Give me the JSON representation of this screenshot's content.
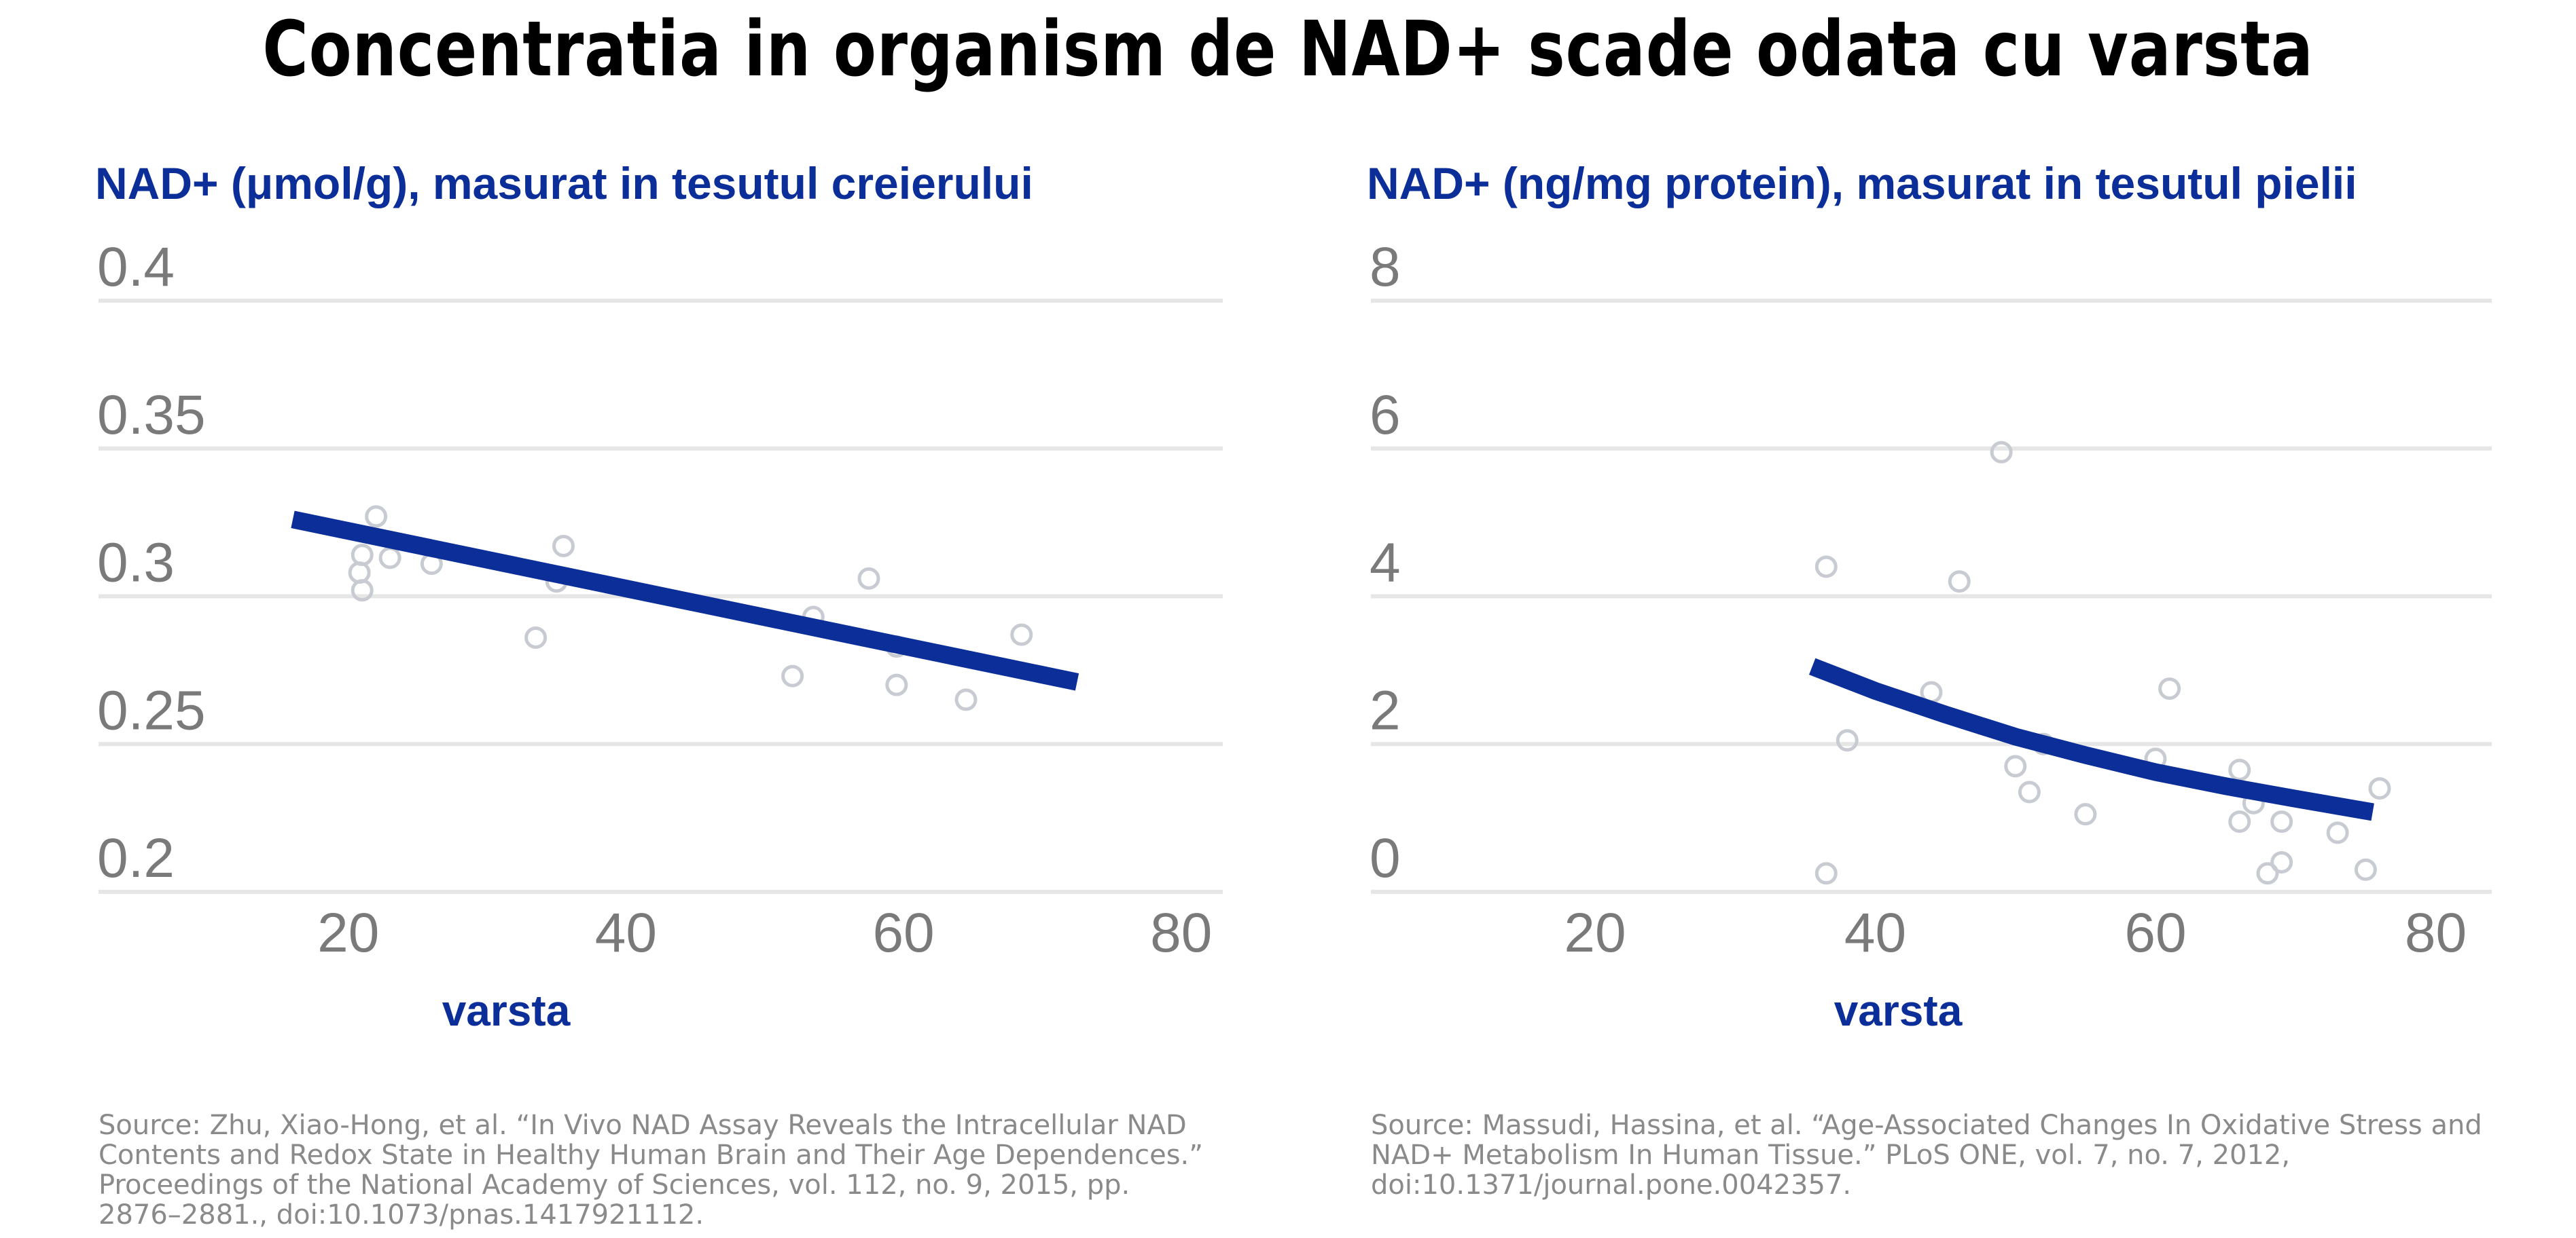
{
  "title": "Concentratia in organism de NAD+ scade odata cu varsta",
  "left_panel": {
    "title": "NAD+ (μmol/g),  masurat in tesutul creierului",
    "xlabel": "varsta",
    "source": "Source: Zhu, Xiao-Hong, et al. “In Vivo NAD Assay Reveals the Intracellular NAD Contents and Redox State in Healthy Human Brain and Their Age Dependences.” Proceedings of the National Academy of Sciences, vol. 112, no. 9, 2015, pp. 2876–2881., doi:10.1073/pnas.1417921112."
  },
  "right_panel": {
    "title": "NAD+ (ng/mg protein), masurat in tesutul pielii",
    "xlabel": "varsta",
    "source": "Source: Massudi, Hassina, et al. “Age-Associated Changes In Oxidative Stress and NAD+ Metabolism In Human Tissue.” PLoS ONE, vol. 7, no. 7, 2012, doi:10.1371/journal.pone.0042357."
  },
  "chart_data": [
    {
      "type": "scatter",
      "title": "NAD+ (μmol/g),  masurat in tesutul creierului",
      "xlabel": "varsta",
      "ylabel": "",
      "xlim": [
        2,
        83
      ],
      "ylim": [
        0.2,
        0.4
      ],
      "x_ticks": [
        "20",
        "40",
        "60",
        "80"
      ],
      "y_ticks": [
        "0.2",
        "0.25",
        "0.3",
        "0.35",
        "0.4"
      ],
      "grid": true,
      "colors": {
        "points": "#c8ccd2",
        "trend": "#0b2e99",
        "grid": "#e6e6e6",
        "ticks": "#7a7a7a"
      },
      "points": [
        [
          22,
          0.327
        ],
        [
          21,
          0.314
        ],
        [
          20.8,
          0.308
        ],
        [
          21,
          0.302
        ],
        [
          23,
          0.313
        ],
        [
          26,
          0.311
        ],
        [
          33.5,
          0.286
        ],
        [
          35.5,
          0.317
        ],
        [
          35,
          0.305
        ],
        [
          52,
          0.273
        ],
        [
          53.5,
          0.293
        ],
        [
          57.5,
          0.306
        ],
        [
          59.5,
          0.27
        ],
        [
          64.5,
          0.265
        ],
        [
          68.5,
          0.287
        ],
        [
          59.5,
          0.283
        ]
      ],
      "trend": [
        [
          16,
          0.326
        ],
        [
          72.5,
          0.271
        ]
      ]
    },
    {
      "type": "scatter",
      "title": "NAD+ (ng/mg protein), masurat in tesutul pielii",
      "xlabel": "varsta",
      "ylabel": "",
      "xlim": [
        4,
        84
      ],
      "ylim": [
        0,
        8
      ],
      "x_ticks": [
        "20",
        "40",
        "60",
        "80"
      ],
      "y_ticks": [
        "0",
        "2",
        "4",
        "6",
        "8"
      ],
      "grid": true,
      "colors": {
        "points": "#c8ccd2",
        "trend": "#0b2e99",
        "grid": "#e6e6e6",
        "ticks": "#7a7a7a"
      },
      "points": [
        [
          49,
          5.95
        ],
        [
          36.5,
          4.4
        ],
        [
          46,
          4.2
        ],
        [
          44,
          2.7
        ],
        [
          38,
          2.05
        ],
        [
          36.5,
          0.25
        ],
        [
          50,
          1.7
        ],
        [
          51,
          1.35
        ],
        [
          52,
          2
        ],
        [
          55,
          1.05
        ],
        [
          60,
          1.8
        ],
        [
          61,
          2.75
        ],
        [
          66,
          1.65
        ],
        [
          66,
          0.95
        ],
        [
          67,
          1.2
        ],
        [
          69,
          0.95
        ],
        [
          69,
          0.4
        ],
        [
          68,
          0.25
        ],
        [
          73,
          0.8
        ],
        [
          75,
          0.3
        ],
        [
          76,
          1.4
        ]
      ],
      "trend": [
        [
          35.5,
          3.05
        ],
        [
          40,
          2.72
        ],
        [
          45,
          2.4
        ],
        [
          50,
          2.1
        ],
        [
          55,
          1.85
        ],
        [
          60,
          1.62
        ],
        [
          65,
          1.43
        ],
        [
          70,
          1.26
        ],
        [
          75.5,
          1.08
        ]
      ]
    }
  ]
}
